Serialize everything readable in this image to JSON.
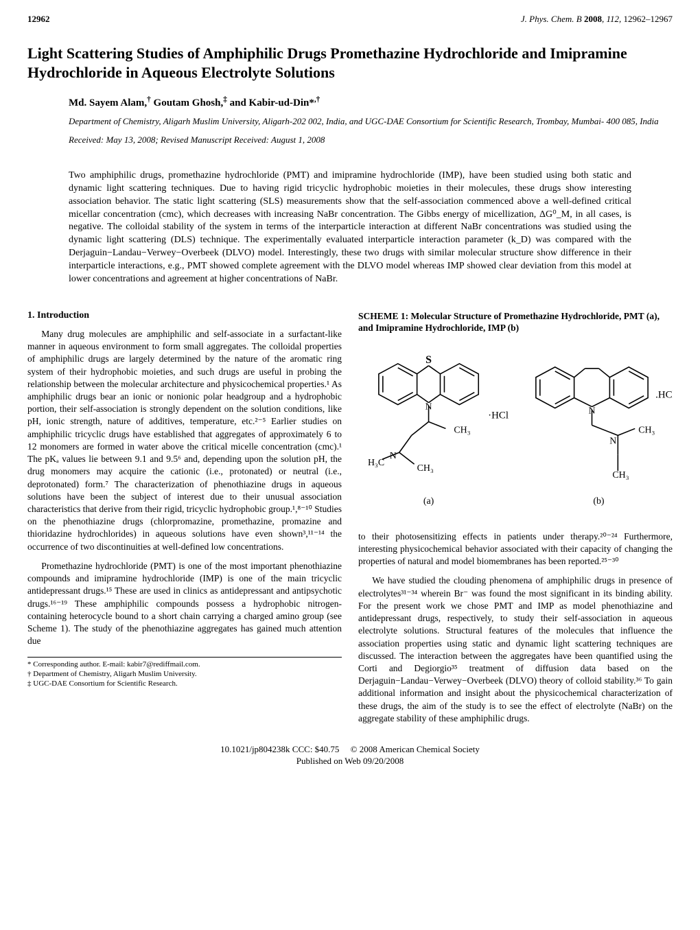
{
  "header": {
    "page_number": "12962",
    "journal": "J. Phys. Chem. B",
    "year": "2008",
    "volume": "112",
    "pages": "12962–12967"
  },
  "title": "Light Scattering Studies of Amphiphilic Drugs Promethazine Hydrochloride and Imipramine Hydrochloride in Aqueous Electrolyte Solutions",
  "authors_html": "Md. Sayem Alam,<sup>†</sup> Goutam Ghosh,<sup>‡</sup> and Kabir-ud-Din*<sup>,†</sup>",
  "affiliation": "Department of Chemistry, Aligarh Muslim University, Aligarh-202 002, India, and UGC-DAE Consortium for Scientific Research, Trombay, Mumbai- 400 085, India",
  "dates": "Received: May 13, 2008; Revised Manuscript Received: August 1, 2008",
  "abstract": "Two amphiphilic drugs, promethazine hydrochloride (PMT) and imipramine hydrochloride (IMP), have been studied using both static and dynamic light scattering techniques. Due to having rigid tricyclic hydrophobic moieties in their molecules, these drugs show interesting association behavior. The static light scattering (SLS) measurements show that the self-association commenced above a well-defined critical micellar concentration (cmc), which decreases with increasing NaBr concentration. The Gibbs energy of micellization, ΔG⁰_M, in all cases, is negative. The colloidal stability of the system in terms of the interparticle interaction at different NaBr concentrations was studied using the dynamic light scattering (DLS) technique. The experimentally evaluated interparticle interaction parameter (k_D) was compared with the Derjaguin−Landau−Verwey−Overbeek (DLVO) model. Interestingly, these two drugs with similar molecular structure show difference in their interparticle interactions, e.g., PMT showed complete agreement with the DLVO model whereas IMP showed clear deviation from this model at lower concentrations and agreement at higher concentrations of NaBr.",
  "section1": {
    "heading": "1. Introduction",
    "p1": "Many drug molecules are amphiphilic and self-associate in a surfactant-like manner in aqueous environment to form small aggregates. The colloidal properties of amphiphilic drugs are largely determined by the nature of the aromatic ring system of their hydrophobic moieties, and such drugs are useful in probing the relationship between the molecular architecture and physicochemical properties.¹ As amphiphilic drugs bear an ionic or nonionic polar headgroup and a hydrophobic portion, their self-association is strongly dependent on the solution conditions, like pH, ionic strength, nature of additives, temperature, etc.²⁻⁵ Earlier studies on amphiphilic tricyclic drugs have established that aggregates of approximately 6 to 12 monomers are formed in water above the critical micelle concentration (cmc).¹ The pKₐ values lie between 9.1 and 9.5⁶ and, depending upon the solution pH, the drug monomers may acquire the cationic (i.e., protonated) or neutral (i.e., deprotonated) form.⁷ The characterization of phenothiazine drugs in aqueous solutions have been the subject of interest due to their unusual association characteristics that derive from their rigid, tricyclic hydrophobic group.¹,⁸⁻¹⁰ Studies on the phenothiazine drugs (chlorpromazine, promethazine, promazine and thioridazine hydrochlorides) in aqueous solutions have even shown³,¹¹⁻¹⁴ the occurrence of two discontinuities at well-defined low concentrations.",
    "p2": "Promethazine hydrochloride (PMT) is one of the most important phenothiazine compounds and imipramine hydrochloride (IMP) is one of the main tricyclic antidepressant drugs.¹⁵ These are used in clinics as antidepressant and antipsychotic drugs.¹⁶⁻¹⁹ These amphiphilic compounds possess a hydrophobic nitrogen-containing heterocycle bound to a short chain carrying a charged amino group (see Scheme 1). The study of the phenothiazine aggregates has gained much attention due"
  },
  "scheme": {
    "title": "SCHEME 1:  Molecular Structure of Promethazine Hydrochloride, PMT (a), and Imipramine Hydrochloride, IMP (b)",
    "labels": {
      "a": "(a)",
      "b": "(b)"
    },
    "text": {
      "hcl_a": "·HCl",
      "hcl_b": ".HCl",
      "ch3": "CH₃",
      "h3c": "H₃C",
      "n": "N",
      "s": "S"
    },
    "colors": {
      "stroke": "#000000",
      "bg": "#ffffff"
    }
  },
  "right_p1": "to their photosensitizing effects in patients under therapy.²⁰⁻²⁴ Furthermore, interesting physicochemical behavior associated with their capacity of changing the properties of natural and model biomembranes has been reported.²⁵⁻³⁰",
  "right_p2": "We have studied the clouding phenomena of amphiphilic drugs in presence of electrolytes³¹⁻³⁴ wherein Br⁻ was found the most significant in its binding ability. For the present work we chose PMT and IMP as model phenothiazine and antidepressant drugs, respectively, to study their self-association in aqueous electrolyte solutions. Structural features of the molecules that influence the association properties using static and dynamic light scattering techniques are discussed. The interaction between the aggregates have been quantified using the Corti and Degiorgio³⁵ treatment of diffusion data based on the Derjaguin−Landau−Verwey−Overbeek (DLVO) theory of colloid stability.³⁶ To gain additional information and insight about the physicochemical characterization of these drugs, the aim of the study is to see the effect of electrolyte (NaBr) on the aggregate stability of these amphiphilic drugs.",
  "footnotes": {
    "l1": "* Corresponding author. E-mail: kabir7@rediffmail.com.",
    "l2": "† Department of Chemistry, Aligarh Muslim University.",
    "l3": "‡ UGC-DAE Consortium for Scientific Research."
  },
  "footer": {
    "doi_line": "10.1021/jp804238k CCC: $40.75     © 2008 American Chemical Society",
    "pub_line": "Published on Web 09/20/2008"
  }
}
